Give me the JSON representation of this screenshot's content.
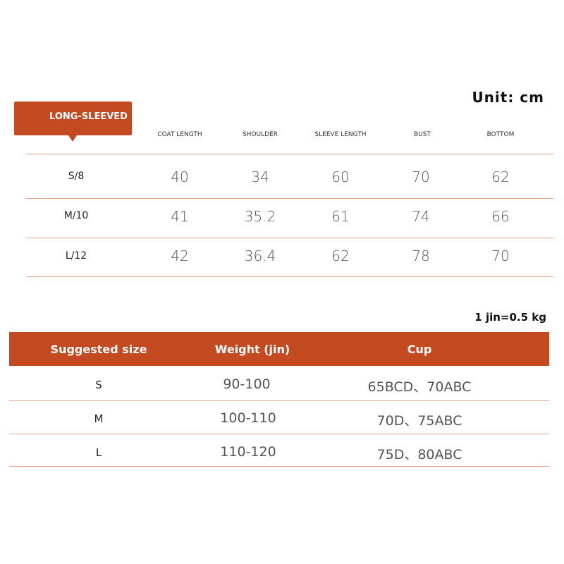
{
  "unit_label": "Unit: cm",
  "measurements": {
    "tag": "LONG-SLEEVED",
    "headers": [
      "COAT LENGTH",
      "SHOULDER",
      "SLEEVE LENGTH",
      "BUST",
      "BOTTOM"
    ],
    "rows": [
      {
        "size": "S/8",
        "values": [
          "40",
          "34",
          "60",
          "70",
          "62"
        ]
      },
      {
        "size": "M/10",
        "values": [
          "41",
          "35.2",
          "61",
          "74",
          "66"
        ]
      },
      {
        "size": "L/12",
        "values": [
          "42",
          "36.4",
          "62",
          "78",
          "70"
        ]
      }
    ]
  },
  "conversion_note": "1 jin=0.5 kg",
  "suggestions": {
    "headers": [
      "Suggested size",
      "Weight (jin)",
      "Cup"
    ],
    "rows": [
      [
        "S",
        "90-100",
        "65BCD、70ABC"
      ],
      [
        "M",
        "100-110",
        "70D、75ABC"
      ],
      [
        "L",
        "110-120",
        "75D、80ABC"
      ]
    ]
  },
  "colors": {
    "accent": "#c44a22",
    "divider": "#e3a38d"
  }
}
